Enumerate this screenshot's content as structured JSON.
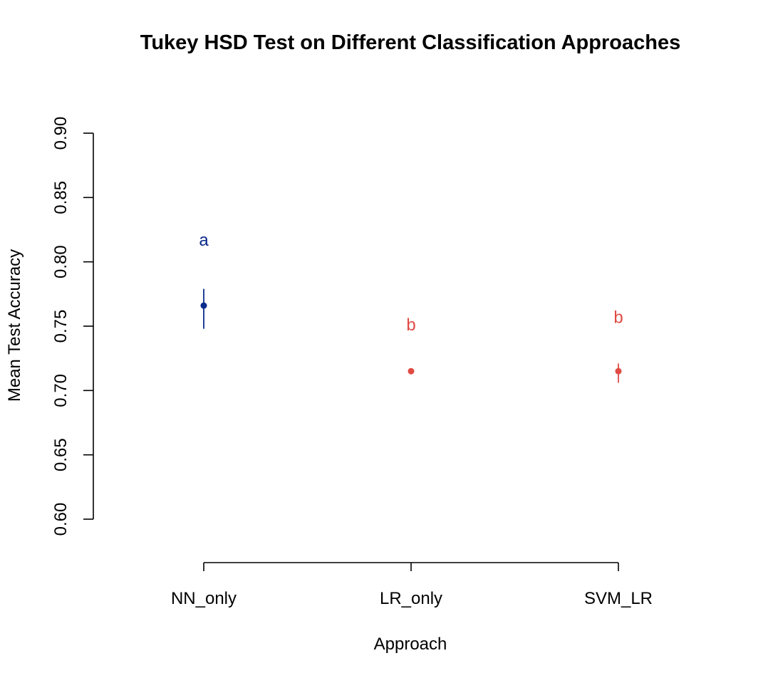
{
  "chart_data": {
    "type": "scatter",
    "title": "Tukey HSD Test on Different Classification Approaches",
    "xlabel": "Approach",
    "ylabel": "Mean Test Accuracy",
    "categories": [
      "NN_only",
      "LR_only",
      "SVM_LR"
    ],
    "ylim": [
      0.6,
      0.9
    ],
    "yticks": [
      0.6,
      0.65,
      0.7,
      0.75,
      0.8,
      0.85,
      0.9
    ],
    "ytick_labels": [
      "0.60",
      "0.65",
      "0.70",
      "0.75",
      "0.80",
      "0.85",
      "0.90"
    ],
    "grid": false,
    "series": [
      {
        "values": [
          0.766,
          0.715,
          0.715
        ],
        "error_low": [
          0.748,
          0.715,
          0.706
        ],
        "error_high": [
          0.779,
          0.715,
          0.721
        ],
        "group_letters": [
          "a",
          "b",
          "b"
        ],
        "letter_y": [
          0.817,
          0.751,
          0.757
        ],
        "colors": [
          "#0a2a8c",
          "#e04b43",
          "#e04b43"
        ]
      }
    ]
  }
}
